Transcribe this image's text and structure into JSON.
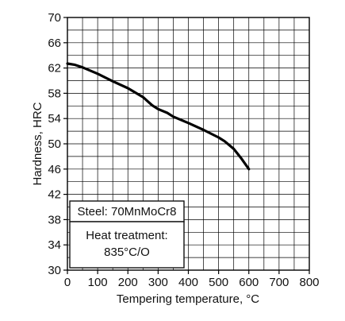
{
  "chart_data": {
    "type": "line",
    "title": "",
    "xlabel": "Tempering temperature, °C",
    "ylabel": "Hardness, HRC",
    "xlim": [
      0,
      800
    ],
    "ylim": [
      30,
      70
    ],
    "x_ticks": [
      0,
      100,
      200,
      300,
      400,
      500,
      600,
      700,
      800
    ],
    "y_ticks": [
      30,
      34,
      38,
      42,
      46,
      50,
      54,
      58,
      62,
      66,
      70
    ],
    "x_minor_step": 50,
    "y_minor_step": 2,
    "grid": true,
    "series": [
      {
        "x": [
          0,
          25,
          50,
          100,
          150,
          200,
          250,
          280,
          300,
          330,
          350,
          400,
          450,
          500,
          520,
          550,
          575,
          600
        ],
        "y": [
          62.7,
          62.5,
          62.1,
          61.1,
          59.9,
          58.8,
          57.4,
          56.1,
          55.5,
          54.9,
          54.3,
          53.3,
          52.2,
          51.0,
          50.4,
          49.2,
          47.7,
          46.0
        ]
      }
    ],
    "annotations": {
      "steel": "Steel: 70MnMoCr8",
      "heat_treatment_line1": "Heat treatment:",
      "heat_treatment_line2": "835°C/O"
    },
    "colors": {
      "line": "#000000",
      "grid": "#000000"
    }
  }
}
